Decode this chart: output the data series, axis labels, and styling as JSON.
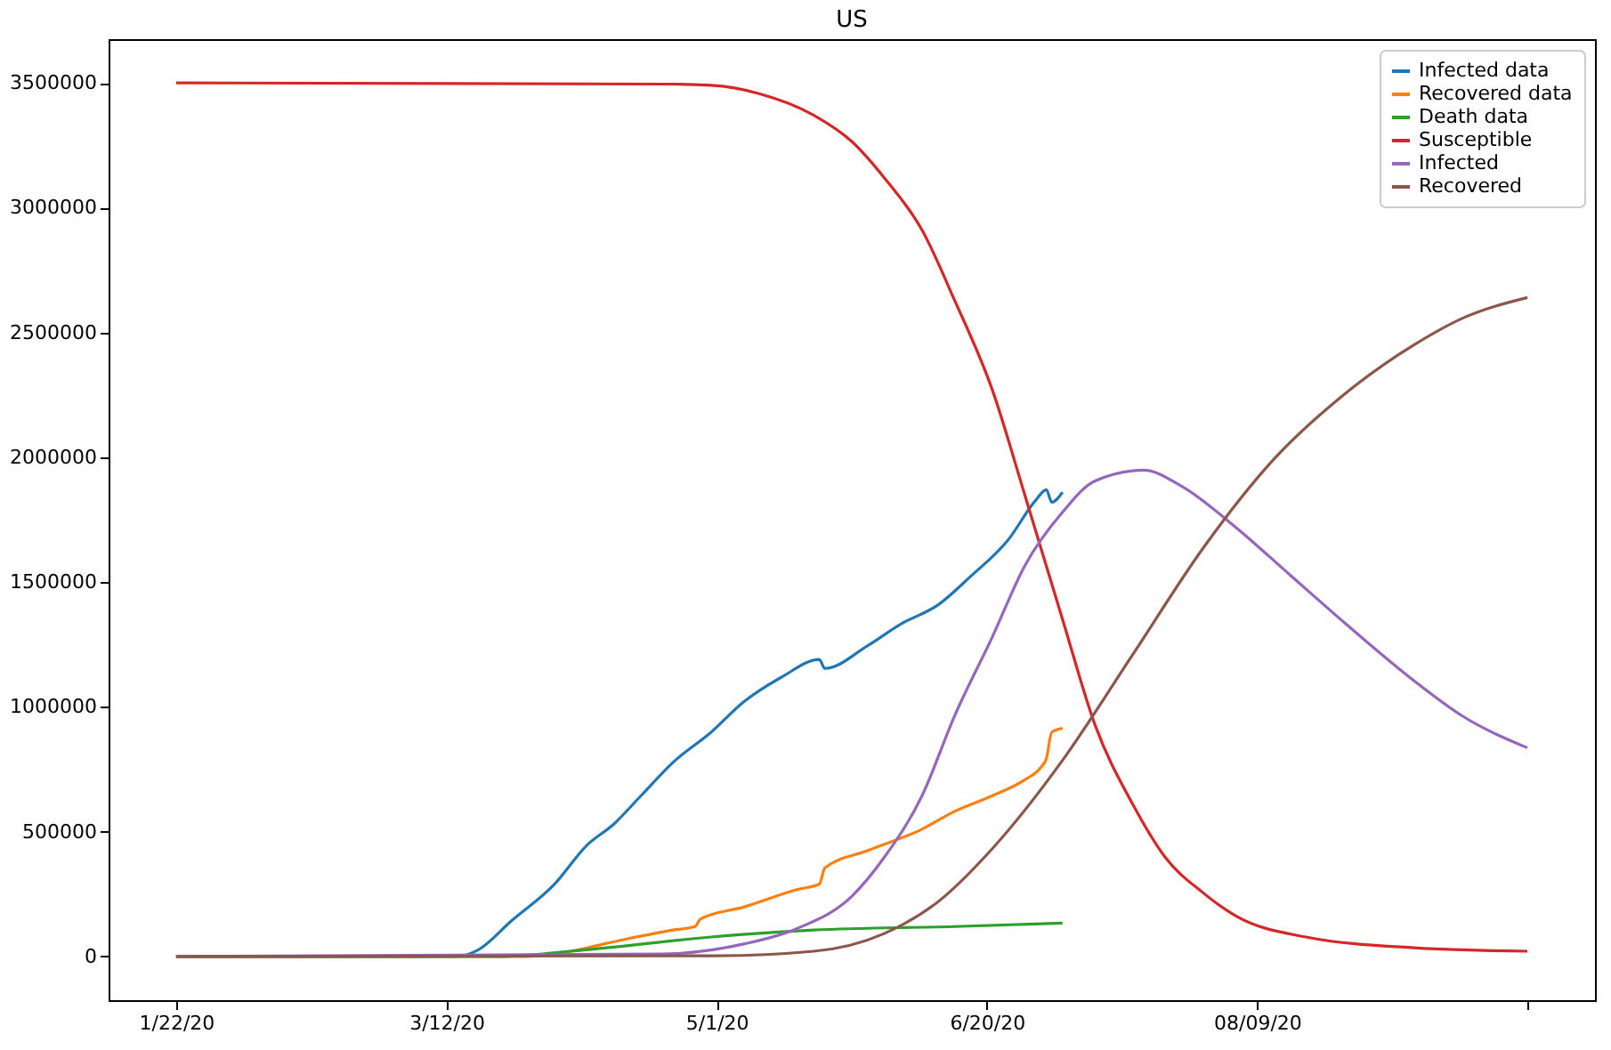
{
  "chart_data": {
    "type": "line",
    "title": "US",
    "xlim": [
      "2020-01-09T12:00",
      "2020-10-10T12:00"
    ],
    "ylim": [
      -175000,
      3675000
    ],
    "xticks": [
      {
        "value": "2020-01-22",
        "label": "1/22/20"
      },
      {
        "value": "2020-03-12",
        "label": "3/12/20"
      },
      {
        "value": "2020-05-01",
        "label": "5/1/20"
      },
      {
        "value": "2020-06-20",
        "label": "6/20/20"
      },
      {
        "value": "2020-08-09",
        "label": "08/09/20"
      },
      {
        "value": "2020-09-28",
        "label": null
      }
    ],
    "yticks": [
      0,
      500000,
      1000000,
      1500000,
      2000000,
      2500000,
      3000000,
      3500000
    ],
    "grid": false,
    "legend": "top right",
    "marker": "none",
    "line_style": "solid",
    "series": [
      {
        "name": "Infected data",
        "color": "#1f77b4",
        "x": [
          "2020-01-22",
          "2020-03-14",
          "2020-03-18",
          "2020-03-24",
          "2020-04-01",
          "2020-04-07",
          "2020-04-12",
          "2020-04-17",
          "2020-04-23",
          "2020-04-30",
          "2020-05-06",
          "2020-05-13",
          "2020-05-20",
          "2020-05-21",
          "2020-05-29",
          "2020-06-04",
          "2020-06-11",
          "2020-06-17",
          "2020-06-24",
          "2020-06-29",
          "2020-07-01",
          "2020-07-02",
          "2020-07-04"
        ],
        "values": [
          0,
          0,
          28000,
          142000,
          290000,
          446000,
          531000,
          644000,
          779000,
          899000,
          1020000,
          1119000,
          1190000,
          1154000,
          1246000,
          1331000,
          1409000,
          1523000,
          1671000,
          1827000,
          1870000,
          1820000,
          1860000
        ]
      },
      {
        "name": "Recovered data",
        "color": "#ff7f0e",
        "x": [
          "2020-01-22",
          "2020-03-27",
          "2020-04-04",
          "2020-04-13",
          "2020-04-23",
          "2020-04-27",
          "2020-04-28",
          "2020-05-06",
          "2020-05-16",
          "2020-05-20",
          "2020-05-21",
          "2020-05-29",
          "2020-06-08",
          "2020-06-14",
          "2020-06-21",
          "2020-06-27",
          "2020-06-30",
          "2020-07-01",
          "2020-07-02",
          "2020-07-04"
        ],
        "values": [
          0,
          0,
          21000,
          64000,
          106000,
          120000,
          150000,
          198000,
          269000,
          290000,
          354000,
          425000,
          510000,
          581000,
          644000,
          708000,
          758000,
          793000,
          899000,
          914000
        ]
      },
      {
        "name": "Death data",
        "color": "#2ca02c",
        "x": [
          "2020-01-22",
          "2020-03-22",
          "2020-04-04",
          "2020-04-30",
          "2020-05-19",
          "2020-06-14",
          "2020-07-04"
        ],
        "values": [
          0,
          0,
          21000,
          78000,
          106000,
          120000,
          134000
        ]
      },
      {
        "name": "Susceptible",
        "color": "#d62728",
        "x": [
          "2020-01-22",
          "2020-04-21",
          "2020-04-30",
          "2020-05-09",
          "2020-05-19",
          "2020-05-26",
          "2020-06-01",
          "2020-06-08",
          "2020-06-14",
          "2020-06-21",
          "2020-06-27",
          "2020-07-04",
          "2020-07-10",
          "2020-07-17",
          "2020-07-23",
          "2020-07-30",
          "2020-08-05",
          "2020-08-18",
          "2020-09-07",
          "2020-09-28"
        ],
        "values": [
          3500000,
          3495000,
          3490000,
          3456000,
          3370000,
          3265000,
          3120000,
          2910000,
          2630000,
          2270000,
          1850000,
          1350000,
          928000,
          609000,
          397000,
          255000,
          163000,
          78000,
          35000,
          21000
        ]
      },
      {
        "name": "Infected",
        "color": "#9467bd",
        "x": [
          "2020-01-22",
          "2020-04-21",
          "2020-05-06",
          "2020-05-16",
          "2020-05-26",
          "2020-06-01",
          "2020-06-08",
          "2020-06-14",
          "2020-06-21",
          "2020-06-27",
          "2020-07-04",
          "2020-07-10",
          "2020-07-19",
          "2020-07-26",
          "2020-08-05",
          "2020-08-15",
          "2020-08-25",
          "2020-09-07",
          "2020-09-16",
          "2020-09-28"
        ],
        "values": [
          0,
          10000,
          50000,
          113000,
          241000,
          397000,
          644000,
          963000,
          1280000,
          1565000,
          1780000,
          1905000,
          1948000,
          1884000,
          1720000,
          1530000,
          1340000,
          1105000,
          963000,
          836000
        ]
      },
      {
        "name": "Recovered",
        "color": "#8c564b",
        "x": [
          "2020-01-22",
          "2020-05-01",
          "2020-05-19",
          "2020-06-01",
          "2020-06-11",
          "2020-06-21",
          "2020-07-04",
          "2020-07-17",
          "2020-07-30",
          "2020-08-12",
          "2020-08-25",
          "2020-09-07",
          "2020-09-16",
          "2020-09-28"
        ],
        "values": [
          0,
          3000,
          21000,
          92000,
          220000,
          432000,
          786000,
          1210000,
          1636000,
          1990000,
          2250000,
          2450000,
          2557000,
          2640000
        ]
      }
    ]
  }
}
